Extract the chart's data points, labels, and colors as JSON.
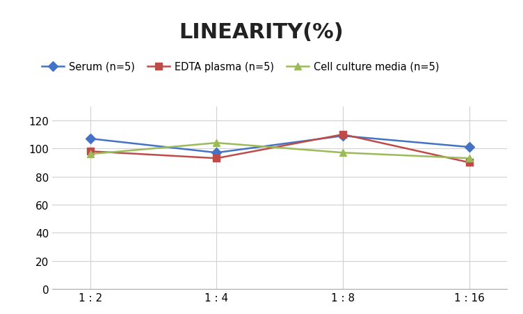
{
  "title": "LINEARITY(%)",
  "x_labels": [
    "1 : 2",
    "1 : 4",
    "1 : 8",
    "1 : 16"
  ],
  "x_positions": [
    0,
    1,
    2,
    3
  ],
  "series": [
    {
      "label": "Serum (n=5)",
      "values": [
        107,
        97,
        109,
        101
      ],
      "color": "#4472C4",
      "marker": "D",
      "marker_size": 7,
      "linewidth": 1.8
    },
    {
      "label": "EDTA plasma (n=5)",
      "values": [
        98,
        93,
        110,
        90
      ],
      "color": "#BE4B48",
      "marker": "s",
      "marker_size": 7,
      "linewidth": 1.8
    },
    {
      "label": "Cell culture media (n=5)",
      "values": [
        96,
        104,
        97,
        93
      ],
      "color": "#9BBB59",
      "marker": "^",
      "marker_size": 7,
      "linewidth": 1.8
    }
  ],
  "ylim": [
    0,
    130
  ],
  "yticks": [
    0,
    20,
    40,
    60,
    80,
    100,
    120
  ],
  "background_color": "#ffffff",
  "grid_color": "#d0d0d0",
  "title_fontsize": 22,
  "legend_fontsize": 10.5,
  "tick_fontsize": 11
}
